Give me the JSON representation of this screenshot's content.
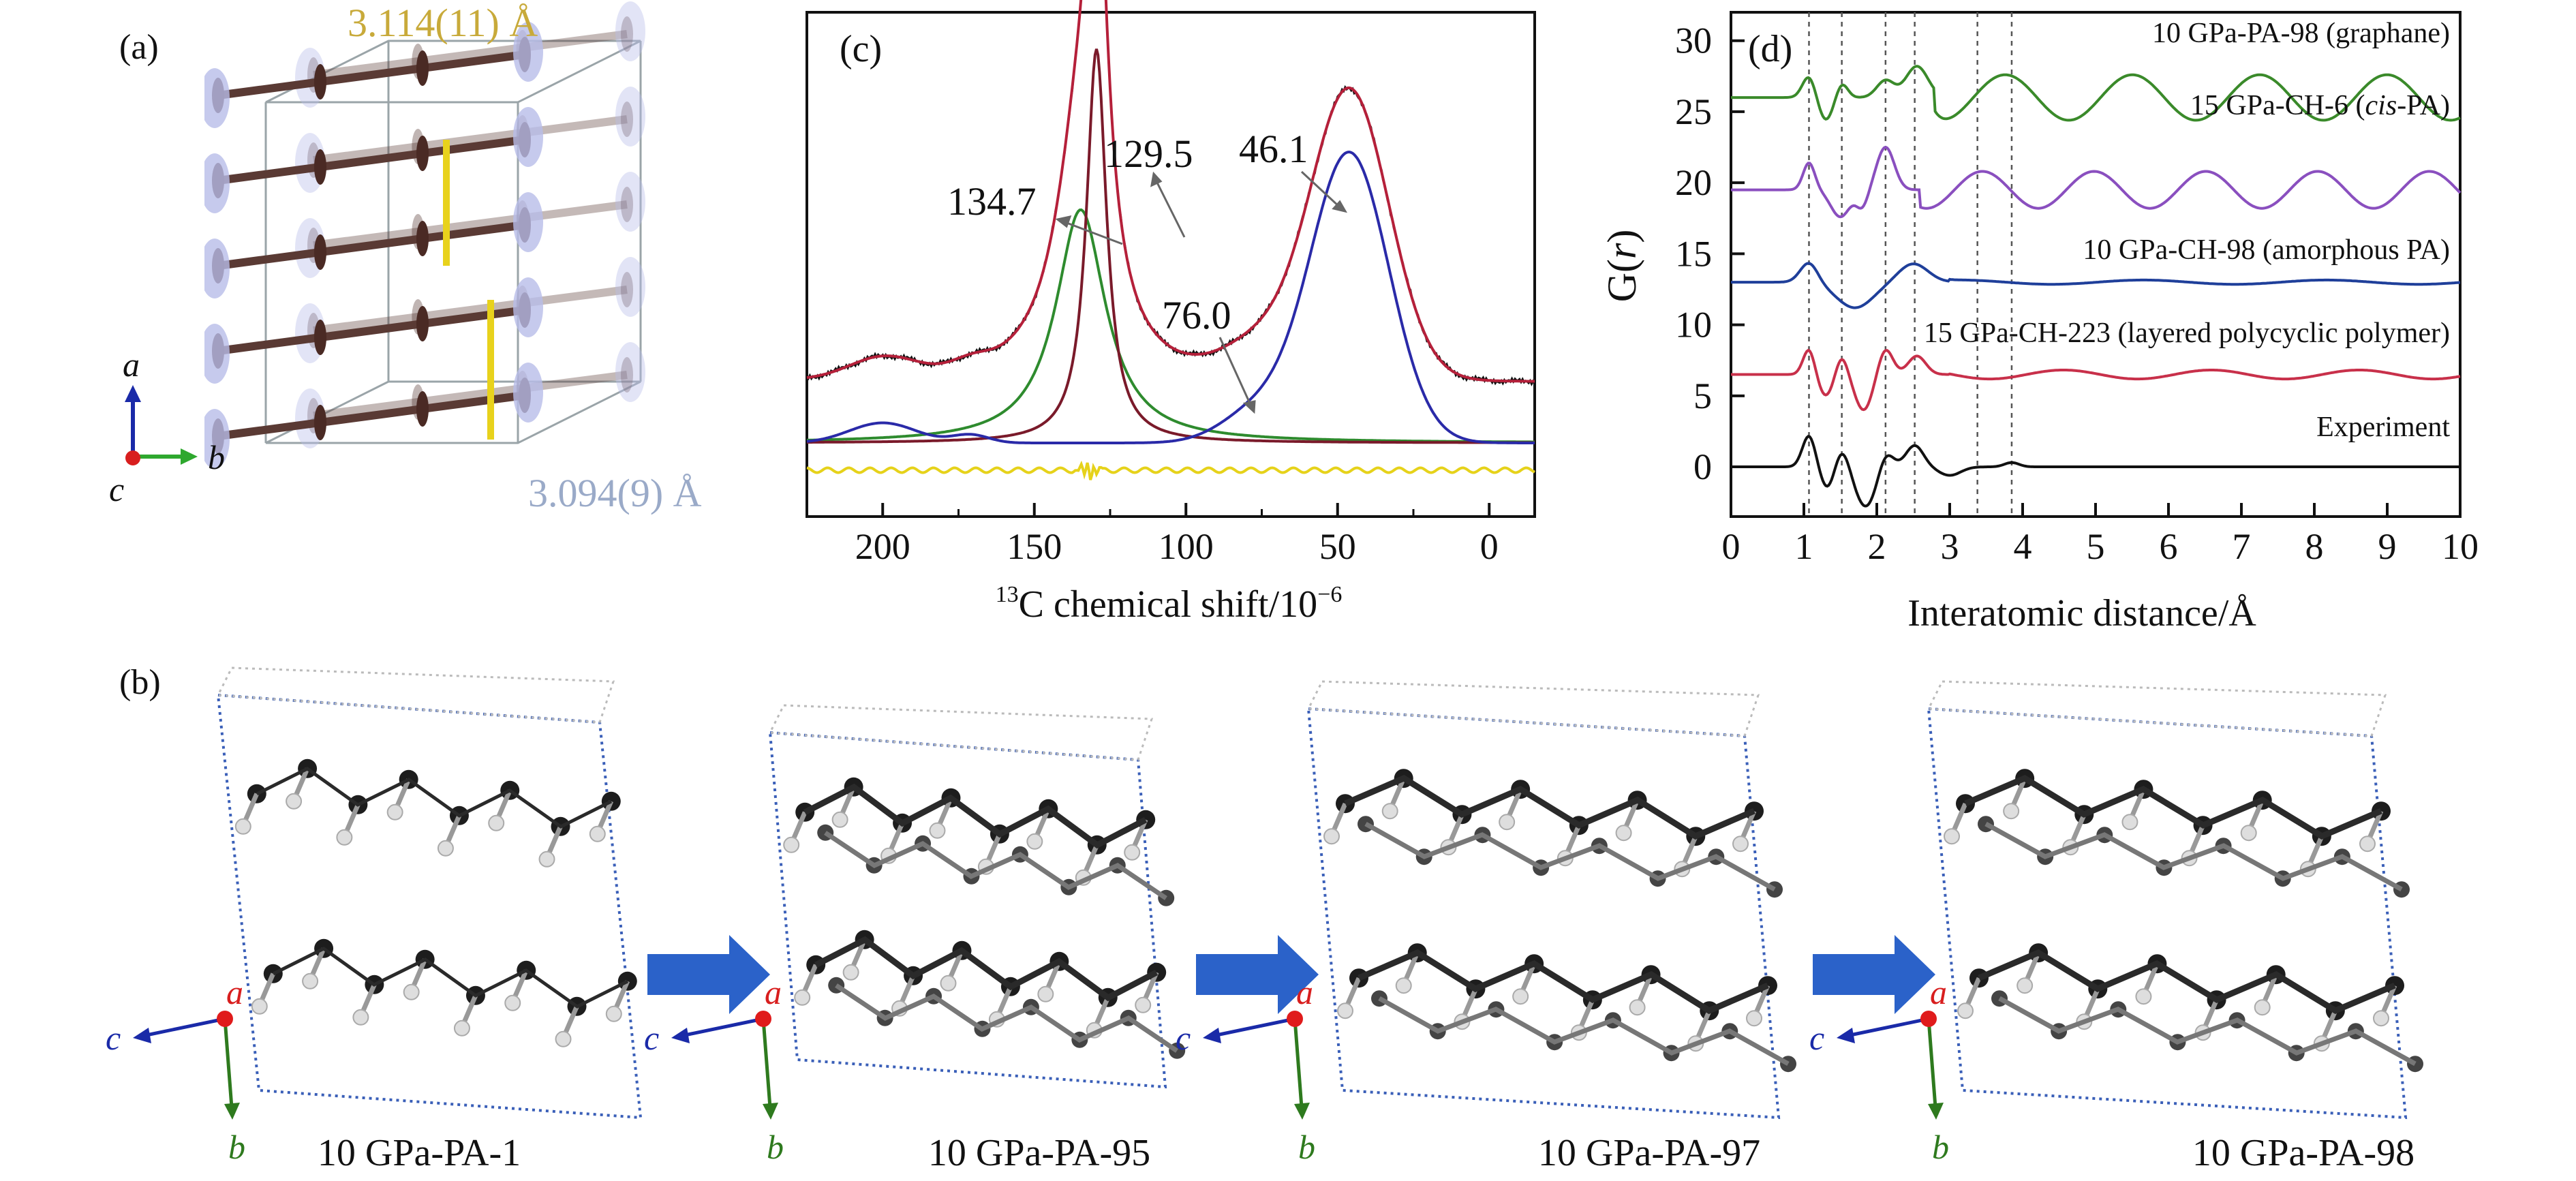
{
  "panel_a": {
    "label": "(a)",
    "dist_top": "3.114(11) Å",
    "dist_bottom": "3.094(9) Å",
    "axes": {
      "a": "a",
      "b": "b",
      "c": "c"
    }
  },
  "panel_b": {
    "label": "(b)",
    "structures": [
      {
        "caption": "10 GPa-PA-1"
      },
      {
        "caption": "10 GPa-PA-95"
      },
      {
        "caption": "10 GPa-PA-97"
      },
      {
        "caption": "10 GPa-PA-98"
      }
    ],
    "axes": {
      "a": "a",
      "b": "b",
      "c": "c"
    }
  },
  "chart_data": [
    {
      "panel": "(c)",
      "type": "line",
      "xlabel_sup": "13",
      "xlabel": "C chemical shift/10",
      "xlabel_exp": "−6",
      "xlim": [
        225,
        -15
      ],
      "x_ticks": [
        200,
        150,
        100,
        50,
        0
      ],
      "annotations": [
        "134.7",
        "129.5",
        "46.1",
        "76.0"
      ],
      "colors": {
        "experiment": "#111111",
        "fit": "#b5203a",
        "green": "#2e8b2e",
        "maroon": "#7a1a2a",
        "blue": "#2a2aa8",
        "residual": "#e6d21a"
      }
    },
    {
      "panel": "(d)",
      "type": "line",
      "xlabel": "Interatomic distance/Å",
      "ylabel_pre": "G(",
      "ylabel_var": "r",
      "ylabel_post": ")",
      "xlim": [
        0,
        10
      ],
      "ylim": [
        -3.5,
        32
      ],
      "x_ticks": [
        0,
        1,
        2,
        3,
        4,
        5,
        6,
        7,
        8,
        9,
        10
      ],
      "y_ticks": [
        0,
        5,
        10,
        15,
        20,
        25,
        30
      ],
      "reference_lines_x": [
        1.07,
        1.52,
        2.12,
        2.52,
        3.38,
        3.85
      ],
      "series": [
        {
          "name": "Experiment",
          "offset": 0,
          "color": "#111111"
        },
        {
          "name": "15 GPa-CH-223 (layered polycyclic polymer)",
          "offset": 6.5,
          "color": "#c8304a"
        },
        {
          "name": "10 GPa-CH-98 (amorphous PA)",
          "offset": 13,
          "color": "#1f3f9a"
        },
        {
          "name_pre": "15 GPa-CH-6 (",
          "name_ital": "cis",
          "name_post": "-PA)",
          "offset": 19.5,
          "color": "#8a4fbf"
        },
        {
          "name": "10 GPa-PA-98 (graphane)",
          "offset": 26,
          "color": "#3a8a2a"
        }
      ]
    }
  ]
}
